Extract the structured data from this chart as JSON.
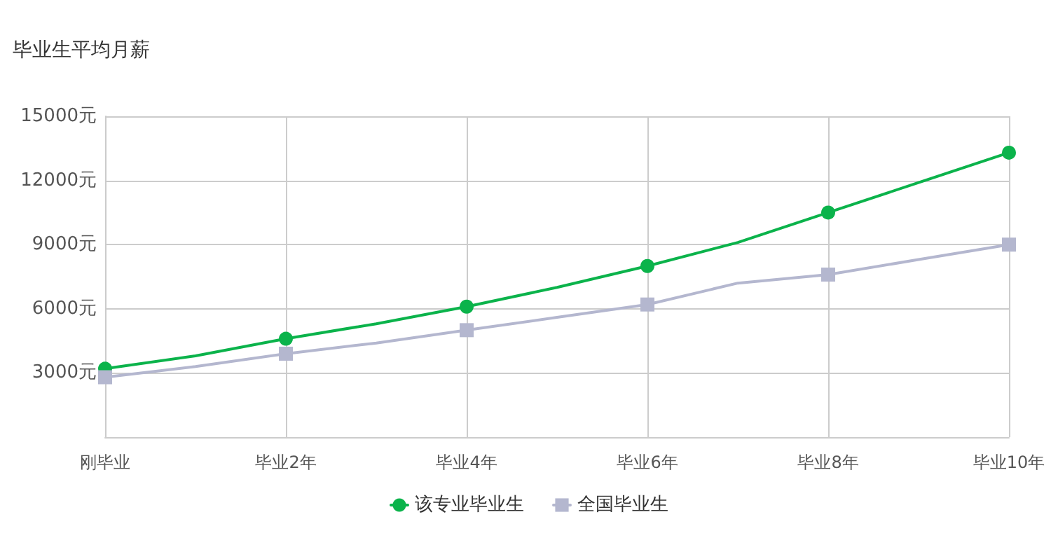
{
  "chart_data": {
    "type": "line",
    "title": "毕业生平均月薪",
    "categories": [
      "刚毕业",
      null,
      "毕业2年",
      null,
      "毕业4年",
      null,
      "毕业6年",
      null,
      "毕业8年",
      null,
      "毕业10年"
    ],
    "ylim": [
      0,
      15000
    ],
    "yticks": [
      {
        "value": 3000,
        "label": "3000元"
      },
      {
        "value": 6000,
        "label": "6000元"
      },
      {
        "value": 9000,
        "label": "9000元"
      },
      {
        "value": 12000,
        "label": "12000元"
      },
      {
        "value": 15000,
        "label": "15000元"
      }
    ],
    "series": [
      {
        "name": "该专业毕业生",
        "color": "#0bb34b",
        "marker": "circle",
        "values": [
          3200,
          3800,
          4600,
          5300,
          6100,
          7000,
          8000,
          9100,
          10500,
          11900,
          13300
        ]
      },
      {
        "name": "全国毕业生",
        "color": "#b4b7cf",
        "marker": "square",
        "values": [
          2800,
          3300,
          3900,
          4400,
          5000,
          5600,
          6200,
          7200,
          7600,
          8300,
          9000
        ]
      }
    ],
    "grid": true,
    "legend": "bottom",
    "line_style": "solid"
  }
}
